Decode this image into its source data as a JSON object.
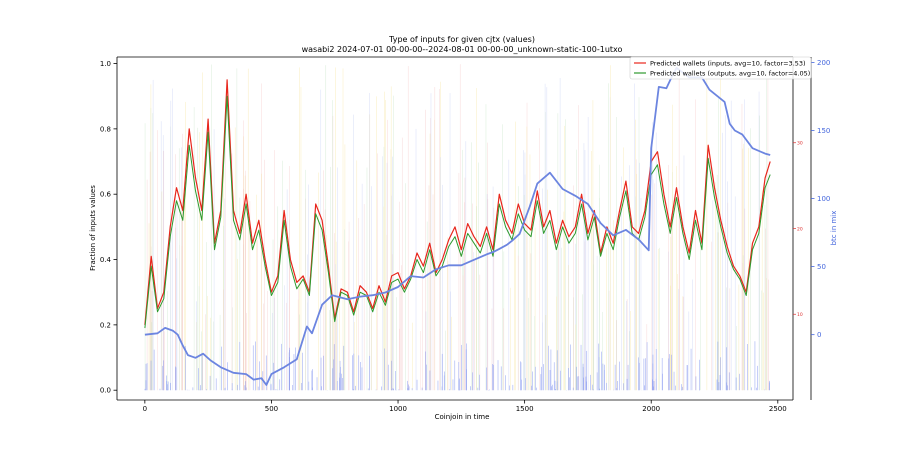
{
  "chart_data": {
    "type": "line",
    "title": "Type of inputs for given cjtx (values)",
    "subtitle": "wasabi2 2024-07-01 00-00-00--2024-08-01 00-00-00_unknown-static-100-1utxo",
    "xlabel": "Coinjoin in time",
    "ylabel": "Fraction of inputs values",
    "y2label": "btc in mix",
    "xlim": [
      -110,
      2560
    ],
    "ylim": [
      -0.03,
      1.02
    ],
    "y2lim": [
      -48,
      204
    ],
    "y3lim": [
      0,
      40
    ],
    "grid": false,
    "legend_position": "top-right",
    "x_ticks": [
      0,
      500,
      1000,
      1500,
      2000,
      2500
    ],
    "y_ticks": [
      "0.0",
      "0.2",
      "0.4",
      "0.6",
      "0.8",
      "1.0"
    ],
    "y2_ticks": [
      "0",
      "50",
      "100",
      "150",
      "200"
    ],
    "y3_ticks": [
      "10",
      "20",
      "30"
    ],
    "colors": {
      "inputs": "#e8261c",
      "outputs": "#2e9a2e",
      "btc": "#6c85e0",
      "axis2": "#4466dd",
      "axis3": "#dd3333"
    },
    "series": [
      {
        "name": "Predicted wallets (inputs, avg=10, factor=3.53)",
        "axis": "left",
        "x": [
          0,
          25,
          50,
          75,
          100,
          125,
          150,
          175,
          200,
          225,
          250,
          275,
          300,
          325,
          350,
          375,
          400,
          425,
          450,
          475,
          500,
          525,
          550,
          575,
          600,
          625,
          650,
          675,
          700,
          725,
          750,
          775,
          800,
          825,
          850,
          875,
          900,
          925,
          950,
          975,
          1000,
          1025,
          1050,
          1075,
          1100,
          1125,
          1150,
          1175,
          1200,
          1225,
          1250,
          1275,
          1300,
          1325,
          1350,
          1375,
          1400,
          1425,
          1450,
          1475,
          1500,
          1525,
          1550,
          1575,
          1600,
          1625,
          1650,
          1675,
          1700,
          1725,
          1750,
          1775,
          1800,
          1825,
          1850,
          1875,
          1900,
          1925,
          1950,
          1975,
          2000,
          2025,
          2050,
          2075,
          2100,
          2125,
          2150,
          2175,
          2200,
          2225,
          2250,
          2275,
          2300,
          2325,
          2350,
          2375,
          2400,
          2425,
          2450,
          2470
        ],
        "values": [
          0.2,
          0.41,
          0.25,
          0.3,
          0.5,
          0.62,
          0.55,
          0.8,
          0.65,
          0.55,
          0.83,
          0.45,
          0.55,
          0.95,
          0.55,
          0.48,
          0.6,
          0.45,
          0.52,
          0.4,
          0.3,
          0.35,
          0.55,
          0.4,
          0.33,
          0.35,
          0.3,
          0.57,
          0.52,
          0.38,
          0.22,
          0.31,
          0.3,
          0.24,
          0.32,
          0.3,
          0.25,
          0.32,
          0.27,
          0.35,
          0.36,
          0.31,
          0.35,
          0.42,
          0.38,
          0.45,
          0.36,
          0.4,
          0.46,
          0.5,
          0.43,
          0.51,
          0.47,
          0.44,
          0.5,
          0.43,
          0.6,
          0.52,
          0.48,
          0.57,
          0.51,
          0.49,
          0.61,
          0.5,
          0.55,
          0.45,
          0.52,
          0.47,
          0.5,
          0.6,
          0.48,
          0.55,
          0.42,
          0.5,
          0.45,
          0.55,
          0.64,
          0.5,
          0.48,
          0.55,
          0.7,
          0.73,
          0.6,
          0.5,
          0.62,
          0.5,
          0.42,
          0.55,
          0.45,
          0.75,
          0.62,
          0.52,
          0.44,
          0.38,
          0.35,
          0.3,
          0.45,
          0.5,
          0.65,
          0.7
        ]
      },
      {
        "name": "Predicted wallets (outputs, avg=10, factor=4.05)",
        "axis": "left",
        "x": [
          0,
          25,
          50,
          75,
          100,
          125,
          150,
          175,
          200,
          225,
          250,
          275,
          300,
          325,
          350,
          375,
          400,
          425,
          450,
          475,
          500,
          525,
          550,
          575,
          600,
          625,
          650,
          675,
          700,
          725,
          750,
          775,
          800,
          825,
          850,
          875,
          900,
          925,
          950,
          975,
          1000,
          1025,
          1050,
          1075,
          1100,
          1125,
          1150,
          1175,
          1200,
          1225,
          1250,
          1275,
          1300,
          1325,
          1350,
          1375,
          1400,
          1425,
          1450,
          1475,
          1500,
          1525,
          1550,
          1575,
          1600,
          1625,
          1650,
          1675,
          1700,
          1725,
          1750,
          1775,
          1800,
          1825,
          1850,
          1875,
          1900,
          1925,
          1950,
          1975,
          2000,
          2025,
          2050,
          2075,
          2100,
          2125,
          2150,
          2175,
          2200,
          2225,
          2250,
          2275,
          2300,
          2325,
          2350,
          2375,
          2400,
          2425,
          2450,
          2470
        ],
        "values": [
          0.19,
          0.38,
          0.24,
          0.28,
          0.47,
          0.58,
          0.52,
          0.75,
          0.61,
          0.52,
          0.79,
          0.43,
          0.53,
          0.9,
          0.52,
          0.46,
          0.57,
          0.43,
          0.49,
          0.38,
          0.29,
          0.33,
          0.52,
          0.38,
          0.31,
          0.34,
          0.29,
          0.54,
          0.49,
          0.36,
          0.21,
          0.3,
          0.29,
          0.23,
          0.3,
          0.29,
          0.24,
          0.3,
          0.26,
          0.33,
          0.34,
          0.3,
          0.34,
          0.4,
          0.36,
          0.43,
          0.35,
          0.38,
          0.44,
          0.47,
          0.41,
          0.48,
          0.45,
          0.42,
          0.48,
          0.41,
          0.57,
          0.5,
          0.46,
          0.54,
          0.49,
          0.47,
          0.58,
          0.48,
          0.52,
          0.43,
          0.5,
          0.45,
          0.48,
          0.57,
          0.46,
          0.53,
          0.41,
          0.48,
          0.43,
          0.53,
          0.61,
          0.48,
          0.46,
          0.53,
          0.66,
          0.69,
          0.57,
          0.48,
          0.59,
          0.48,
          0.4,
          0.52,
          0.43,
          0.71,
          0.59,
          0.5,
          0.42,
          0.37,
          0.34,
          0.29,
          0.43,
          0.48,
          0.62,
          0.66
        ]
      },
      {
        "name": "btc in mix",
        "axis": "right",
        "x": [
          0,
          50,
          80,
          110,
          130,
          150,
          170,
          200,
          230,
          260,
          300,
          350,
          400,
          430,
          460,
          480,
          500,
          550,
          600,
          640,
          660,
          700,
          740,
          800,
          850,
          900,
          950,
          1000,
          1050,
          1100,
          1150,
          1200,
          1250,
          1300,
          1350,
          1380,
          1400,
          1430,
          1450,
          1480,
          1520,
          1550,
          1600,
          1650,
          1700,
          1750,
          1800,
          1850,
          1900,
          1950,
          1990,
          2000,
          2030,
          2060,
          2080,
          2100,
          2150,
          2200,
          2230,
          2250,
          2290,
          2310,
          2330,
          2360,
          2400,
          2450,
          2470
        ],
        "values": [
          0,
          1,
          5,
          3,
          0,
          -8,
          -15,
          -17,
          -14,
          -19,
          -24,
          -28,
          -29,
          -33,
          -32,
          -37,
          -29,
          -24,
          -18,
          6,
          1,
          22,
          29,
          26,
          28,
          29,
          31,
          35,
          43,
          42,
          48,
          51,
          51,
          55,
          59,
          61,
          63,
          66,
          69,
          74,
          94,
          111,
          119,
          107,
          102,
          96,
          82,
          73,
          77,
          70,
          62,
          137,
          182,
          181,
          189,
          196,
          189,
          189,
          180,
          177,
          171,
          155,
          150,
          147,
          137,
          133,
          132
        ]
      }
    ]
  }
}
